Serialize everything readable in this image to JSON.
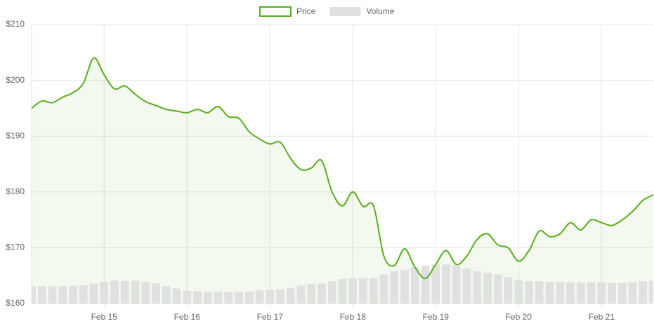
{
  "chart_data": {
    "type": "line",
    "categories": [
      null,
      null,
      null,
      null,
      null,
      null,
      null,
      "Feb 15",
      null,
      null,
      null,
      null,
      null,
      null,
      null,
      "Feb 16",
      null,
      null,
      null,
      null,
      null,
      null,
      null,
      "Feb 17",
      null,
      null,
      null,
      null,
      null,
      null,
      null,
      "Feb 18",
      null,
      null,
      null,
      null,
      null,
      null,
      null,
      "Feb 19",
      null,
      null,
      null,
      null,
      null,
      null,
      null,
      "Feb 20",
      null,
      null,
      null,
      null,
      null,
      null,
      null,
      "Feb 21",
      null,
      null,
      null,
      null,
      null
    ],
    "series": [
      {
        "name": "Price",
        "color": "#5aac1e",
        "values": [
          195,
          196.3,
          196,
          197,
          197.8,
          199.5,
          204,
          201,
          198.5,
          199,
          197.5,
          196.2,
          195.5,
          194.8,
          194.5,
          194.2,
          194.8,
          194.2,
          195.3,
          193.5,
          193.2,
          190.8,
          189.5,
          188.6,
          188.9,
          186,
          184,
          184.3,
          185.6,
          180,
          177.5,
          180,
          177.4,
          177.5,
          168.5,
          166.8,
          169.8,
          166.5,
          164.5,
          167,
          169.5,
          167,
          168.5,
          171.5,
          172.5,
          170.5,
          170,
          167.6,
          169.5,
          173,
          172,
          172.5,
          174.5,
          173.2,
          175,
          174.5,
          174,
          175,
          176.5,
          178.5,
          179.5
        ]
      },
      {
        "name": "Volume",
        "type": "bar",
        "color": "#e0e0e0",
        "values": [
          163.1,
          163.1,
          163.1,
          163.1,
          163.2,
          163.3,
          163.6,
          163.9,
          164.1,
          164.1,
          164.1,
          163.9,
          163.6,
          163.1,
          162.7,
          162.3,
          162.2,
          162.1,
          162.1,
          162.1,
          162.1,
          162.2,
          162.4,
          162.5,
          162.6,
          162.8,
          163.2,
          163.5,
          163.6,
          164,
          164.4,
          164.5,
          164.6,
          164.6,
          165.2,
          165.8,
          166,
          166.5,
          166.8,
          167,
          167,
          166.8,
          166.3,
          165.8,
          165.5,
          165.2,
          164.7,
          164.2,
          164,
          164,
          163.9,
          163.9,
          163.8,
          163.8,
          163.8,
          163.8,
          163.7,
          163.7,
          163.8,
          164,
          164.1
        ]
      }
    ],
    "ylim": [
      160,
      210
    ],
    "yticks": [
      {
        "value": 160,
        "label": "$160"
      },
      {
        "value": 170,
        "label": "$170"
      },
      {
        "value": 180,
        "label": "$180"
      },
      {
        "value": 190,
        "label": "$190"
      },
      {
        "value": 200,
        "label": "$200"
      },
      {
        "value": 210,
        "label": "$210"
      }
    ],
    "grid": true,
    "legend": "top",
    "area": true
  }
}
